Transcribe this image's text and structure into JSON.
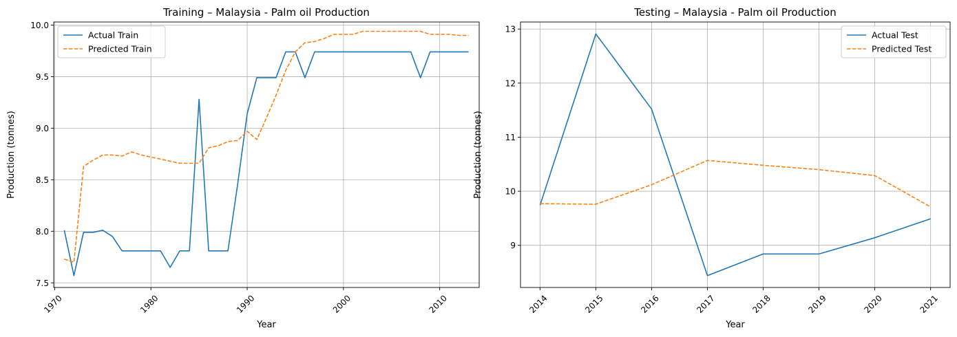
{
  "chart_data": [
    {
      "type": "line",
      "title": "Training – Malaysia - Palm oil Production",
      "xlabel": "Year",
      "ylabel": "Production (tonnes)",
      "xlim": [
        1969.9,
        2014.1
      ],
      "ylim": [
        7.455,
        10.03
      ],
      "xticks": [
        1970,
        1980,
        1990,
        2000,
        2010
      ],
      "yticks": [
        7.5,
        8.0,
        8.5,
        9.0,
        9.5,
        10.0
      ],
      "ytick_labels": [
        "7.5",
        "8.0",
        "8.5",
        "9.0",
        "9.5",
        "10.0"
      ],
      "xtick_rotation": 45,
      "grid": true,
      "legend_position": "upper left",
      "x": [
        1971,
        1972,
        1973,
        1974,
        1975,
        1976,
        1977,
        1978,
        1979,
        1980,
        1981,
        1982,
        1983,
        1984,
        1985,
        1986,
        1987,
        1988,
        1989,
        1990,
        1991,
        1992,
        1993,
        1994,
        1995,
        1996,
        1997,
        1998,
        1999,
        2000,
        2001,
        2002,
        2003,
        2004,
        2005,
        2006,
        2007,
        2008,
        2009,
        2010,
        2011,
        2012,
        2013
      ],
      "series": [
        {
          "name": "Actual Train",
          "color": "#1f77b4",
          "style": "solid",
          "values": [
            8.01,
            7.57,
            7.99,
            7.99,
            8.01,
            7.95,
            7.81,
            7.81,
            7.81,
            7.81,
            7.81,
            7.65,
            7.81,
            7.81,
            9.28,
            7.81,
            7.81,
            7.81,
            8.45,
            9.14,
            9.49,
            9.49,
            9.49,
            9.74,
            9.74,
            9.49,
            9.74,
            9.74,
            9.74,
            9.74,
            9.74,
            9.74,
            9.74,
            9.74,
            9.74,
            9.74,
            9.74,
            9.49,
            9.74,
            9.74,
            9.74,
            9.74,
            9.74
          ]
        },
        {
          "name": "Predicted Train",
          "color": "#ff7f0e",
          "style": "dashed",
          "values": [
            7.73,
            7.7,
            8.63,
            8.69,
            8.74,
            8.74,
            8.73,
            8.77,
            8.74,
            8.72,
            8.7,
            8.68,
            8.66,
            8.66,
            8.66,
            8.81,
            8.83,
            8.87,
            8.88,
            8.97,
            8.89,
            9.1,
            9.32,
            9.56,
            9.74,
            9.83,
            9.84,
            9.87,
            9.91,
            9.91,
            9.91,
            9.94,
            9.94,
            9.94,
            9.94,
            9.94,
            9.94,
            9.94,
            9.91,
            9.91,
            9.91,
            9.9,
            9.9
          ]
        }
      ]
    },
    {
      "type": "line",
      "title": "Testing – Malaysia - Palm oil Production",
      "xlabel": "Year",
      "ylabel": "Production (tonnes)",
      "xlim": [
        2013.65,
        2021.35
      ],
      "ylim": [
        8.22,
        13.13
      ],
      "xticks": [
        2014,
        2015,
        2016,
        2017,
        2018,
        2019,
        2020,
        2021
      ],
      "yticks": [
        9,
        10,
        11,
        12,
        13
      ],
      "ytick_labels": [
        "9",
        "10",
        "11",
        "12",
        "13"
      ],
      "xtick_rotation": 45,
      "grid": true,
      "legend_position": "upper right",
      "x": [
        2014,
        2015,
        2016,
        2017,
        2018,
        2019,
        2020,
        2021
      ],
      "series": [
        {
          "name": "Actual Test",
          "color": "#1f77b4",
          "style": "solid",
          "values": [
            9.74,
            12.91,
            11.52,
            8.44,
            8.84,
            8.84,
            9.14,
            9.49
          ]
        },
        {
          "name": "Predicted Test",
          "color": "#ff7f0e",
          "style": "dashed",
          "values": [
            9.77,
            9.76,
            10.12,
            10.57,
            10.48,
            10.4,
            10.29,
            9.71
          ]
        }
      ]
    }
  ]
}
